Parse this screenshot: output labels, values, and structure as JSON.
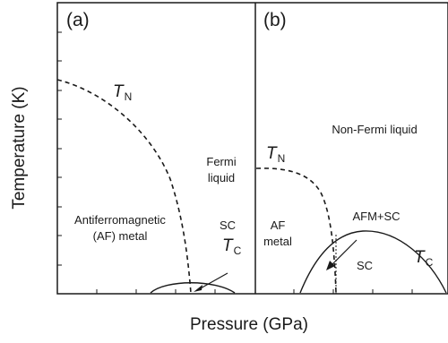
{
  "axes": {
    "xlabel": "Pressure (GPa)",
    "ylabel": "Temperature (K)"
  },
  "panel_a": {
    "tag": "(a)",
    "tn_symbol": "T",
    "tn_sub": "N",
    "af_line1": "Antiferromagnetic",
    "af_line2": "(AF) metal",
    "sc_label": "SC",
    "tc_symbol": "T",
    "tc_sub": "C",
    "fermi_line1": "Fermi",
    "fermi_line2": "liquid"
  },
  "panel_b": {
    "tag": "(b)",
    "nfl_label": "Non-Fermi liquid",
    "tn_symbol": "T",
    "tn_sub": "N",
    "af_line1": "AF",
    "af_line2": "metal",
    "afm_sc_label": "AFM+SC",
    "sc_label": "SC",
    "tc_symbol": "T",
    "tc_sub": "C"
  }
}
